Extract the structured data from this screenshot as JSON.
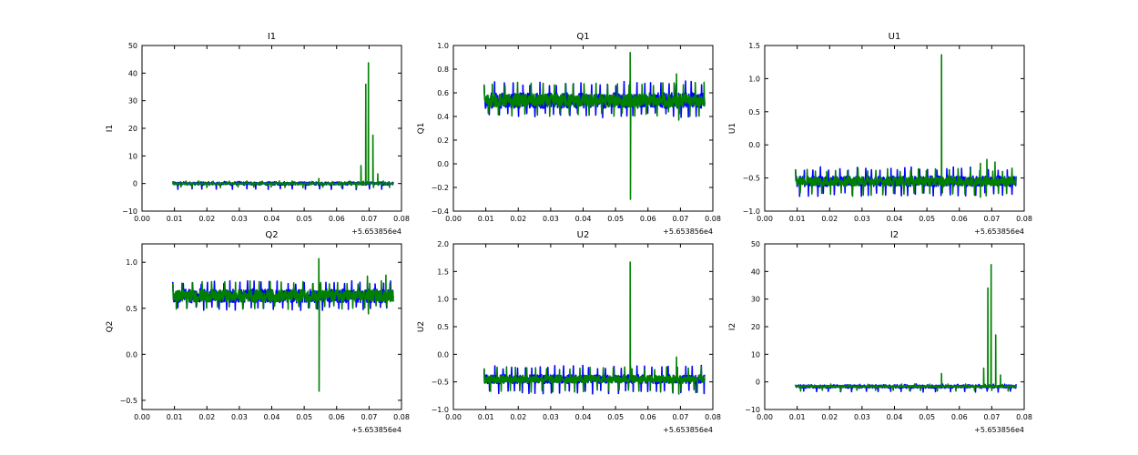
{
  "colors": {
    "series_a": "#0000ff",
    "series_b": "#008000",
    "axes": "#000000",
    "background": "#ffffff"
  },
  "chart_data": [
    {
      "id": "I1",
      "type": "line",
      "title": "I1",
      "ylabel": "I1",
      "xlim": [
        0.0,
        0.08
      ],
      "ylim": [
        -10,
        50
      ],
      "xticks": [
        "0.00",
        "0.01",
        "0.02",
        "0.03",
        "0.04",
        "0.05",
        "0.06",
        "0.07",
        "0.08"
      ],
      "yticks": [
        "−10",
        "0",
        "10",
        "20",
        "30",
        "40",
        "50"
      ],
      "x_offset_label": "+5.653856e4",
      "series": [
        {
          "color": "blue",
          "x_range": [
            0.0095,
            0.0775
          ],
          "baseline": 0.0,
          "band": [
            -0.6,
            0.6
          ],
          "spike_low": -1.8,
          "spike_high": 0.8,
          "spike_every": 0.0018,
          "spikes": []
        },
        {
          "color": "green",
          "x_range": [
            0.0095,
            0.0775
          ],
          "baseline": 0.0,
          "band": [
            -0.3,
            0.3
          ],
          "spike_low": -1.2,
          "spike_high": 1.0,
          "spike_every": 0.0024,
          "spikes": [
            [
              0.0545,
              1.8
            ],
            [
              0.0675,
              6.5
            ],
            [
              0.069,
              36.0
            ],
            [
              0.0698,
              43.7
            ],
            [
              0.0712,
              17.5
            ],
            [
              0.0727,
              3.5
            ]
          ]
        }
      ]
    },
    {
      "id": "Q1",
      "type": "line",
      "title": "Q1",
      "ylabel": "Q1",
      "xlim": [
        0.0,
        0.08
      ],
      "ylim": [
        -0.4,
        1.0
      ],
      "xticks": [
        "0.00",
        "0.01",
        "0.02",
        "0.03",
        "0.04",
        "0.05",
        "0.06",
        "0.07",
        "0.08"
      ],
      "yticks": [
        "−0.4",
        "−0.2",
        "0.0",
        "0.2",
        "0.4",
        "0.6",
        "0.8",
        "1.0"
      ],
      "x_offset_label": "+5.653856e4",
      "series": [
        {
          "color": "blue",
          "x_range": [
            0.0095,
            0.0775
          ],
          "baseline": 0.535,
          "band": [
            0.47,
            0.6
          ],
          "spike_low": 0.43,
          "spike_high": 0.7,
          "spike_every": 0.0012,
          "spikes": []
        },
        {
          "color": "green",
          "x_range": [
            0.0095,
            0.0775
          ],
          "baseline": 0.535,
          "band": [
            0.48,
            0.59
          ],
          "spike_low": 0.44,
          "spike_high": 0.69,
          "spike_every": 0.0016,
          "spikes": [
            [
              0.0545,
              0.94
            ],
            [
              0.0546,
              -0.3
            ],
            [
              0.0688,
              0.76
            ],
            [
              0.0695,
              0.37
            ]
          ]
        }
      ]
    },
    {
      "id": "U1",
      "type": "line",
      "title": "U1",
      "ylabel": "U1",
      "xlim": [
        0.0,
        0.08
      ],
      "ylim": [
        -1.0,
        1.5
      ],
      "xticks": [
        "0.00",
        "0.01",
        "0.02",
        "0.03",
        "0.04",
        "0.05",
        "0.06",
        "0.07",
        "0.08"
      ],
      "yticks": [
        "−1.0",
        "−0.5",
        "0.0",
        "0.5",
        "1.0",
        "1.5"
      ],
      "x_offset_label": "+5.653856e4",
      "series": [
        {
          "color": "blue",
          "x_range": [
            0.0095,
            0.0775
          ],
          "baseline": -0.55,
          "band": [
            -0.63,
            -0.47
          ],
          "spike_low": -0.72,
          "spike_high": -0.33,
          "spike_every": 0.0012,
          "spikes": []
        },
        {
          "color": "green",
          "x_range": [
            0.0095,
            0.0775
          ],
          "baseline": -0.55,
          "band": [
            -0.62,
            -0.48
          ],
          "spike_low": -0.72,
          "spike_high": -0.35,
          "spike_every": 0.0016,
          "spikes": [
            [
              0.0545,
              1.36
            ],
            [
              0.0665,
              -0.28
            ],
            [
              0.0685,
              -0.22
            ],
            [
              0.0665,
              -0.79
            ],
            [
              0.071,
              -0.26
            ]
          ]
        }
      ]
    },
    {
      "id": "Q2",
      "type": "line",
      "title": "Q2",
      "ylabel": "Q2",
      "xlim": [
        0.0,
        0.08
      ],
      "ylim": [
        -0.6,
        1.2
      ],
      "xticks": [
        "0.00",
        "0.01",
        "0.02",
        "0.03",
        "0.04",
        "0.05",
        "0.06",
        "0.07",
        "0.08"
      ],
      "yticks": [
        "−0.5",
        "0.0",
        "0.5",
        "1.0"
      ],
      "x_offset_label": "+5.653856e4",
      "series": [
        {
          "color": "blue",
          "x_range": [
            0.0095,
            0.0775
          ],
          "baseline": 0.64,
          "band": [
            0.56,
            0.71
          ],
          "spike_low": 0.52,
          "spike_high": 0.8,
          "spike_every": 0.0012,
          "spikes": []
        },
        {
          "color": "green",
          "x_range": [
            0.0095,
            0.0775
          ],
          "baseline": 0.64,
          "band": [
            0.57,
            0.7
          ],
          "spike_low": 0.53,
          "spike_high": 0.8,
          "spike_every": 0.0016,
          "spikes": [
            [
              0.0545,
              1.04
            ],
            [
              0.0546,
              -0.4
            ],
            [
              0.0695,
              0.85
            ],
            [
              0.0698,
              0.44
            ],
            [
              0.0752,
              0.86
            ]
          ]
        }
      ]
    },
    {
      "id": "U2",
      "type": "line",
      "title": "U2",
      "ylabel": "U2",
      "xlim": [
        0.0,
        0.08
      ],
      "ylim": [
        -1.0,
        2.0
      ],
      "xticks": [
        "0.00",
        "0.01",
        "0.02",
        "0.03",
        "0.04",
        "0.05",
        "0.06",
        "0.07",
        "0.08"
      ],
      "yticks": [
        "−1.0",
        "−0.5",
        "0.0",
        "0.5",
        "1.0",
        "1.5",
        "2.0"
      ],
      "x_offset_label": "+5.653856e4",
      "series": [
        {
          "color": "blue",
          "x_range": [
            0.0095,
            0.0775
          ],
          "baseline": -0.45,
          "band": [
            -0.53,
            -0.37
          ],
          "spike_low": -0.65,
          "spike_high": -0.2,
          "spike_every": 0.0012,
          "spikes": []
        },
        {
          "color": "green",
          "x_range": [
            0.0095,
            0.0775
          ],
          "baseline": -0.45,
          "band": [
            -0.52,
            -0.38
          ],
          "spike_low": -0.64,
          "spike_high": -0.22,
          "spike_every": 0.0016,
          "spikes": [
            [
              0.0545,
              1.67
            ],
            [
              0.0688,
              -0.05
            ],
            [
              0.0695,
              -0.72
            ],
            [
              0.0752,
              -0.69
            ]
          ]
        }
      ]
    },
    {
      "id": "I2",
      "type": "line",
      "title": "I2",
      "ylabel": "I2",
      "xlim": [
        0.0,
        0.08
      ],
      "ylim": [
        -10,
        50
      ],
      "xticks": [
        "0.00",
        "0.01",
        "0.02",
        "0.03",
        "0.04",
        "0.05",
        "0.06",
        "0.07",
        "0.08"
      ],
      "yticks": [
        "−10",
        "0",
        "10",
        "20",
        "30",
        "40",
        "50"
      ],
      "x_offset_label": "+5.653856e4",
      "series": [
        {
          "color": "blue",
          "x_range": [
            0.0095,
            0.0775
          ],
          "baseline": -1.7,
          "band": [
            -2.3,
            -1.1
          ],
          "spike_low": -3.3,
          "spike_high": -0.8,
          "spike_every": 0.0018,
          "spikes": []
        },
        {
          "color": "green",
          "x_range": [
            0.0095,
            0.0775
          ],
          "baseline": -1.7,
          "band": [
            -2.0,
            -1.3
          ],
          "spike_low": -3.0,
          "spike_high": -0.7,
          "spike_every": 0.0024,
          "spikes": [
            [
              0.0545,
              3.0
            ],
            [
              0.0675,
              5.0
            ],
            [
              0.0688,
              34.0
            ],
            [
              0.0698,
              42.5
            ],
            [
              0.0712,
              17.0
            ],
            [
              0.0727,
              2.5
            ]
          ]
        }
      ]
    }
  ]
}
